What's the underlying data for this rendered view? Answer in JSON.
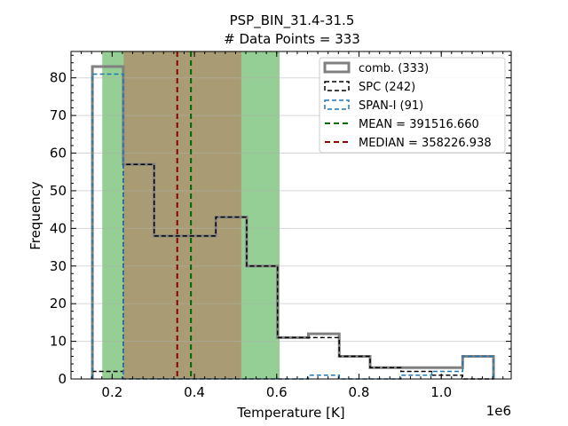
{
  "chart_data": {
    "type": "histogram",
    "title_lines": [
      "PSP_BIN_31.4-31.5",
      "# Data Points = 333"
    ],
    "xlabel": "Temperature [K]",
    "ylabel": "Frequency",
    "x_offset_label": "1e6",
    "xlim": [
      0.1,
      1.17
    ],
    "ylim": [
      0,
      87
    ],
    "xticks": [
      {
        "value": 0.2,
        "label": "0.2"
      },
      {
        "value": 0.4,
        "label": "0.4"
      },
      {
        "value": 0.6,
        "label": "0.6"
      },
      {
        "value": 0.8,
        "label": "0.8"
      },
      {
        "value": 1.0,
        "label": "1.0"
      }
    ],
    "yticks": [
      {
        "value": 0,
        "label": "0"
      },
      {
        "value": 10,
        "label": "10"
      },
      {
        "value": 20,
        "label": "20"
      },
      {
        "value": 30,
        "label": "30"
      },
      {
        "value": 40,
        "label": "40"
      },
      {
        "value": 50,
        "label": "50"
      },
      {
        "value": 60,
        "label": "60"
      },
      {
        "value": 70,
        "label": "70"
      },
      {
        "value": 80,
        "label": "80"
      }
    ],
    "grid": "horizontal",
    "legend_position": "top-right",
    "bin_edges": [
      0.152,
      0.227,
      0.302,
      0.377,
      0.452,
      0.527,
      0.602,
      0.677,
      0.752,
      0.827,
      0.902,
      0.977,
      1.052,
      1.127
    ],
    "series": [
      {
        "name": "comb. (333)",
        "style": "solid",
        "color": "#808080",
        "counts": [
          83,
          57,
          38,
          38,
          43,
          30,
          11,
          12,
          6,
          3,
          3,
          3,
          6
        ]
      },
      {
        "name": "SPC (242)",
        "style": "dashed",
        "color": "#000000",
        "counts": [
          2,
          57,
          38,
          38,
          43,
          30,
          11,
          11,
          6,
          3,
          2,
          1,
          0
        ]
      },
      {
        "name": "SPAN-I (91)",
        "style": "dashed",
        "color": "#1f77b4",
        "counts": [
          81,
          0,
          0,
          0,
          0,
          0,
          0,
          1,
          0,
          0,
          1,
          2,
          6
        ]
      }
    ],
    "bands": [
      {
        "x0": 0.176,
        "x1": 0.607,
        "color": "#2ca02c",
        "opacity": 0.5
      },
      {
        "x0": 0.228,
        "x1": 0.514,
        "color": "#d62728",
        "opacity": 0.3
      }
    ],
    "vlines": [
      {
        "name": "MEAN = 391516.660",
        "value": 0.39151666,
        "color": "#006400"
      },
      {
        "name": "MEDIAN = 358226.938",
        "value": 0.358226938,
        "color": "#8b0000"
      }
    ]
  }
}
